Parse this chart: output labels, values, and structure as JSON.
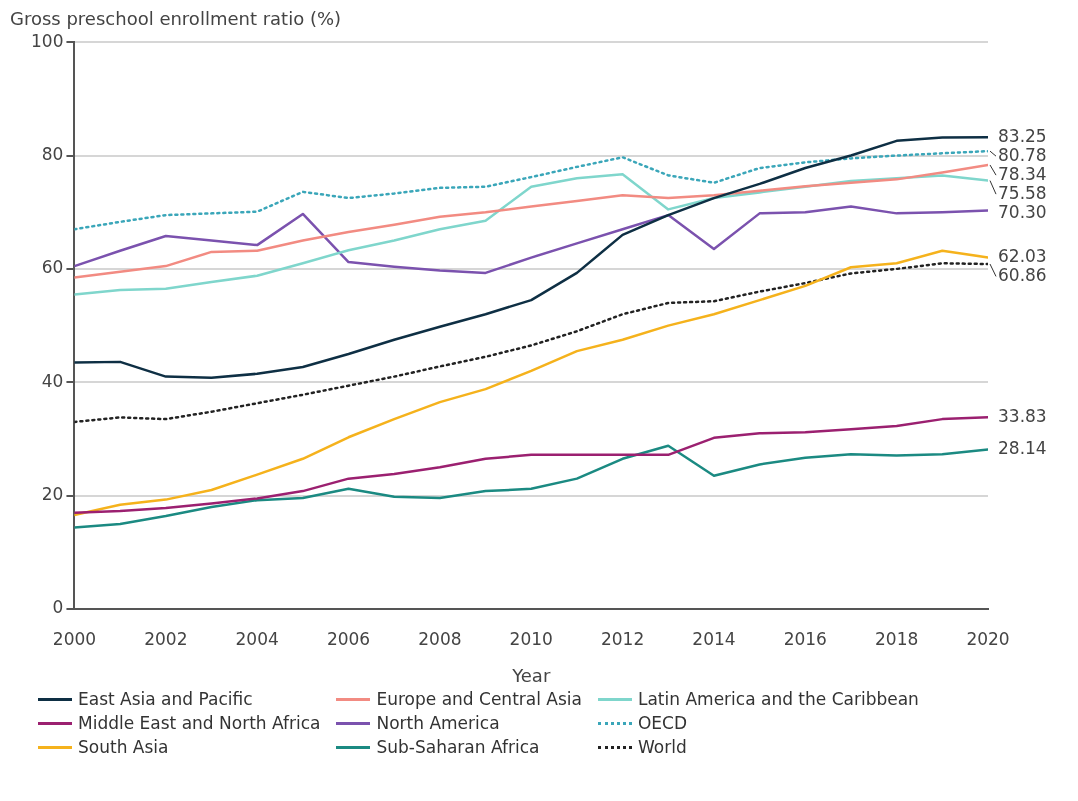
{
  "chart_data": {
    "type": "line",
    "ylabel": "Gross preschool enrollment ratio (%)",
    "xlabel": "Year",
    "x": [
      2000,
      2001,
      2002,
      2003,
      2004,
      2005,
      2006,
      2007,
      2008,
      2009,
      2010,
      2011,
      2012,
      2013,
      2014,
      2015,
      2016,
      2017,
      2018,
      2019,
      2020
    ],
    "xlim": [
      2000,
      2020
    ],
    "xticks": [
      2000,
      2002,
      2004,
      2006,
      2008,
      2010,
      2012,
      2014,
      2016,
      2018,
      2020
    ],
    "ylim": [
      0,
      100
    ],
    "yticks": [
      0,
      20,
      40,
      60,
      80,
      100
    ],
    "grid": "y",
    "legend": "bottom",
    "marker": "none",
    "series": [
      {
        "name": "East Asia and Pacific",
        "color": "#0e2f44",
        "line_style": "solid",
        "values": [
          43.5,
          43.6,
          41,
          40.8,
          41.5,
          42.7,
          45,
          47.5,
          49.8,
          52,
          54.5,
          59.3,
          66,
          69.5,
          72.5,
          75,
          77.8,
          80,
          82.6,
          83.2,
          83.25
        ],
        "value_labels": [
          null,
          null,
          null,
          null,
          null,
          null,
          null,
          null,
          null,
          null,
          null,
          null,
          null,
          null,
          null,
          null,
          null,
          null,
          null,
          null,
          "83.25"
        ]
      },
      {
        "name": "Europe and Central Asia",
        "color": "#f28b82",
        "line_style": "solid",
        "values": [
          58.5,
          59.5,
          60.5,
          63,
          63.2,
          65,
          66.5,
          67.8,
          69.2,
          70,
          71,
          72,
          73,
          72.5,
          73,
          73.8,
          74.6,
          75.2,
          75.8,
          77,
          78.34
        ],
        "value_labels": [
          null,
          null,
          null,
          null,
          null,
          null,
          null,
          null,
          null,
          null,
          null,
          null,
          null,
          null,
          null,
          null,
          null,
          null,
          null,
          null,
          "78.34"
        ]
      },
      {
        "name": "Latin America and the Caribbean",
        "color": "#7fd6cc",
        "line_style": "solid",
        "values": [
          55.5,
          56.3,
          56.5,
          57.7,
          58.8,
          61,
          63.3,
          65,
          67,
          68.5,
          74.5,
          76,
          76.7,
          70.5,
          72.5,
          73.5,
          74.5,
          75.5,
          76,
          76.5,
          75.58
        ],
        "value_labels": [
          null,
          null,
          null,
          null,
          null,
          null,
          null,
          null,
          null,
          null,
          null,
          null,
          null,
          null,
          null,
          null,
          null,
          null,
          null,
          null,
          "75.58"
        ]
      },
      {
        "name": "Middle East and North Africa",
        "color": "#9b2070",
        "line_style": "solid",
        "values": [
          17,
          17.3,
          17.8,
          18.6,
          19.5,
          20.8,
          23,
          23.8,
          25,
          26.5,
          27.2,
          27.2,
          27.2,
          27.2,
          30.2,
          31,
          31.2,
          31.7,
          32.3,
          33.5,
          33.83
        ],
        "value_labels": [
          null,
          null,
          null,
          null,
          null,
          null,
          null,
          null,
          null,
          null,
          null,
          null,
          null,
          null,
          null,
          null,
          null,
          null,
          null,
          null,
          "33.83"
        ]
      },
      {
        "name": "North America",
        "color": "#7b52ae",
        "line_style": "solid",
        "values": [
          60.5,
          63.2,
          65.8,
          65,
          64.2,
          69.7,
          61.2,
          60.4,
          59.7,
          59.3,
          62,
          64.5,
          67,
          69.5,
          63.5,
          69.8,
          70,
          71,
          69.8,
          70,
          70.3
        ],
        "value_labels": [
          null,
          null,
          null,
          null,
          null,
          null,
          null,
          null,
          null,
          null,
          null,
          null,
          null,
          null,
          null,
          null,
          null,
          null,
          null,
          null,
          "70.30"
        ]
      },
      {
        "name": "OECD",
        "color": "#3aa6b9",
        "line_style": "dotted",
        "values": [
          67,
          68.3,
          69.5,
          69.8,
          70.1,
          73.6,
          72.5,
          73.3,
          74.3,
          74.5,
          76.2,
          78,
          79.7,
          76.5,
          75.2,
          77.8,
          78.8,
          79.5,
          80,
          80.4,
          80.78
        ],
        "value_labels": [
          null,
          null,
          null,
          null,
          null,
          null,
          null,
          null,
          null,
          null,
          null,
          null,
          null,
          null,
          null,
          null,
          null,
          null,
          null,
          null,
          "80.78"
        ]
      },
      {
        "name": "South Asia",
        "color": "#f5b21c",
        "line_style": "solid",
        "values": [
          16.6,
          18.4,
          19.3,
          21,
          23.7,
          26.5,
          30.3,
          33.5,
          36.5,
          38.8,
          42,
          45.5,
          47.5,
          50,
          52,
          54.5,
          57,
          60.3,
          61,
          63.2,
          62.03
        ],
        "value_labels": [
          null,
          null,
          null,
          null,
          null,
          null,
          null,
          null,
          null,
          null,
          null,
          null,
          null,
          null,
          null,
          null,
          null,
          null,
          null,
          null,
          "62.03"
        ]
      },
      {
        "name": "Sub-Saharan Africa",
        "color": "#1b8a82",
        "line_style": "solid",
        "values": [
          14.4,
          15,
          16.4,
          18,
          19.2,
          19.6,
          21.2,
          19.8,
          19.6,
          20.8,
          21.2,
          23,
          26.5,
          28.8,
          23.5,
          25.5,
          26.7,
          27.3,
          27.1,
          27.3,
          28.14
        ],
        "value_labels": [
          null,
          null,
          null,
          null,
          null,
          null,
          null,
          null,
          null,
          null,
          null,
          null,
          null,
          null,
          null,
          null,
          null,
          null,
          null,
          null,
          "28.14"
        ]
      },
      {
        "name": "World",
        "color": "#222222",
        "line_style": "dotted",
        "values": [
          33,
          33.8,
          33.5,
          34.8,
          36.3,
          37.8,
          39.4,
          41,
          42.8,
          44.5,
          46.5,
          49,
          52,
          54,
          54.3,
          56,
          57.5,
          59.2,
          60,
          61,
          60.86
        ],
        "value_labels": [
          null,
          null,
          null,
          null,
          null,
          null,
          null,
          null,
          null,
          null,
          null,
          null,
          null,
          null,
          null,
          null,
          null,
          null,
          null,
          null,
          "60.86"
        ]
      }
    ]
  }
}
